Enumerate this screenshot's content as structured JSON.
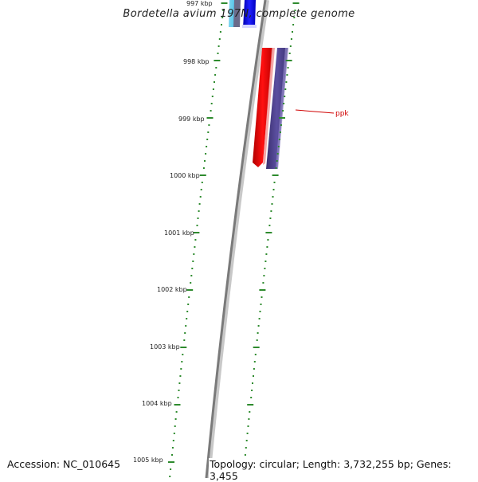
{
  "title": "Bordetella avium 197N, complete genome",
  "footer": {
    "accession": "Accession: NC_010645",
    "topology": "Topology: circular; Length: 3,732,255 bp; Genes: 3,455"
  },
  "ruler_ticks": [
    "997 kbp",
    "998 kbp",
    "999 kbp",
    "1000 kbp",
    "1001 kbp",
    "1002 kbp",
    "1003 kbp",
    "1004 kbp",
    "1005 kbp"
  ],
  "genes": [
    {
      "name": "ppk",
      "strand": "reverse",
      "color": "#4b3f8c"
    }
  ],
  "colors": {
    "ruler": "#2e8b2e",
    "backbone": "#777777",
    "forward_feature": "#ff0000",
    "reverse_feature": "#4b3f8c",
    "label": "#d00000"
  }
}
